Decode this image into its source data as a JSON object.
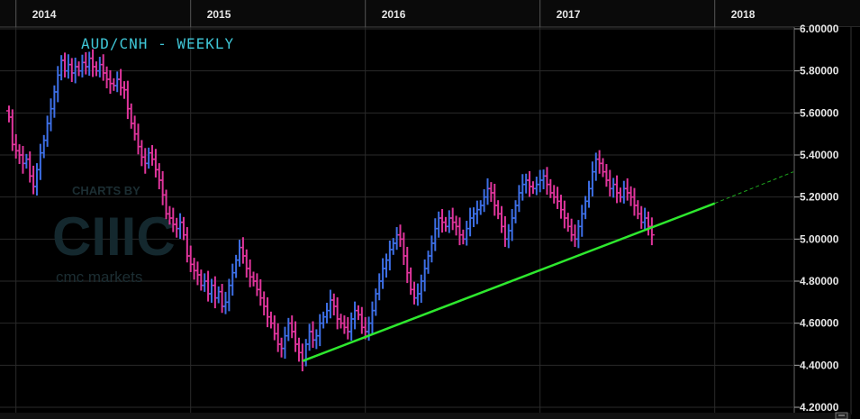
{
  "chart_data": {
    "type": "ohlc",
    "title": "AUD/CNH - WEEKLY",
    "x_axis": {
      "tick_labels": [
        "2014",
        "2015",
        "2016",
        "2017",
        "2018"
      ],
      "tick_values": [
        2014.0,
        2015.0,
        2016.0,
        2017.0,
        2018.0
      ],
      "range": [
        2013.95,
        2018.45
      ]
    },
    "y_axis": {
      "tick_labels": [
        "6.00000",
        "5.80000",
        "5.60000",
        "5.40000",
        "5.20000",
        "5.00000",
        "4.80000",
        "4.60000",
        "4.40000",
        "4.20000"
      ],
      "tick_values": [
        6.0,
        5.8,
        5.6,
        5.4,
        5.2,
        5.0,
        4.8,
        4.6,
        4.4,
        4.2
      ],
      "range": [
        4.2,
        6.0
      ],
      "position": "right"
    },
    "grid": true,
    "colors": {
      "up": "#3d6fe6",
      "down": "#e0359c",
      "trendline": "#2ee82e",
      "grid": "#2a2a2a",
      "title": "#3fc6d6"
    },
    "series": [
      {
        "values": [
          [
            2013.96,
            5.58
          ],
          [
            2013.98,
            5.45
          ],
          [
            2014.0,
            5.42
          ],
          [
            2014.02,
            5.4
          ],
          [
            2014.04,
            5.36
          ],
          [
            2014.06,
            5.38
          ],
          [
            2014.08,
            5.3
          ],
          [
            2014.1,
            5.25
          ],
          [
            2014.12,
            5.33
          ],
          [
            2014.14,
            5.41
          ],
          [
            2014.16,
            5.47
          ],
          [
            2014.18,
            5.55
          ],
          [
            2014.2,
            5.62
          ],
          [
            2014.22,
            5.7
          ],
          [
            2014.24,
            5.78
          ],
          [
            2014.26,
            5.85
          ],
          [
            2014.28,
            5.8
          ],
          [
            2014.3,
            5.83
          ],
          [
            2014.32,
            5.79
          ],
          [
            2014.34,
            5.82
          ],
          [
            2014.36,
            5.8
          ],
          [
            2014.38,
            5.84
          ],
          [
            2014.4,
            5.82
          ],
          [
            2014.42,
            5.86
          ],
          [
            2014.44,
            5.82
          ],
          [
            2014.46,
            5.8
          ],
          [
            2014.48,
            5.83
          ],
          [
            2014.5,
            5.79
          ],
          [
            2014.52,
            5.76
          ],
          [
            2014.54,
            5.74
          ],
          [
            2014.56,
            5.73
          ],
          [
            2014.58,
            5.76
          ],
          [
            2014.6,
            5.72
          ],
          [
            2014.62,
            5.71
          ],
          [
            2014.64,
            5.62
          ],
          [
            2014.66,
            5.55
          ],
          [
            2014.68,
            5.5
          ],
          [
            2014.7,
            5.44
          ],
          [
            2014.72,
            5.39
          ],
          [
            2014.74,
            5.36
          ],
          [
            2014.76,
            5.41
          ],
          [
            2014.78,
            5.38
          ],
          [
            2014.8,
            5.33
          ],
          [
            2014.82,
            5.28
          ],
          [
            2014.84,
            5.21
          ],
          [
            2014.86,
            5.12
          ],
          [
            2014.88,
            5.1
          ],
          [
            2014.9,
            5.07
          ],
          [
            2014.92,
            5.05
          ],
          [
            2014.94,
            5.08
          ],
          [
            2014.96,
            5.02
          ],
          [
            2014.98,
            4.92
          ],
          [
            2015.0,
            4.88
          ],
          [
            2015.02,
            4.85
          ],
          [
            2015.04,
            4.83
          ],
          [
            2015.06,
            4.78
          ],
          [
            2015.08,
            4.8
          ],
          [
            2015.1,
            4.74
          ],
          [
            2015.12,
            4.78
          ],
          [
            2015.14,
            4.72
          ],
          [
            2015.16,
            4.75
          ],
          [
            2015.18,
            4.68
          ],
          [
            2015.2,
            4.7
          ],
          [
            2015.22,
            4.78
          ],
          [
            2015.24,
            4.84
          ],
          [
            2015.26,
            4.9
          ],
          [
            2015.28,
            4.96
          ],
          [
            2015.3,
            4.92
          ],
          [
            2015.32,
            4.86
          ],
          [
            2015.34,
            4.82
          ],
          [
            2015.36,
            4.8
          ],
          [
            2015.38,
            4.76
          ],
          [
            2015.4,
            4.72
          ],
          [
            2015.42,
            4.68
          ],
          [
            2015.44,
            4.63
          ],
          [
            2015.46,
            4.6
          ],
          [
            2015.48,
            4.55
          ],
          [
            2015.5,
            4.5
          ],
          [
            2015.52,
            4.48
          ],
          [
            2015.54,
            4.54
          ],
          [
            2015.56,
            4.6
          ],
          [
            2015.58,
            4.56
          ],
          [
            2015.6,
            4.5
          ],
          [
            2015.62,
            4.46
          ],
          [
            2015.64,
            4.42
          ],
          [
            2015.66,
            4.5
          ],
          [
            2015.68,
            4.56
          ],
          [
            2015.7,
            4.52
          ],
          [
            2015.72,
            4.54
          ],
          [
            2015.74,
            4.6
          ],
          [
            2015.76,
            4.63
          ],
          [
            2015.78,
            4.66
          ],
          [
            2015.8,
            4.71
          ],
          [
            2015.82,
            4.68
          ],
          [
            2015.84,
            4.62
          ],
          [
            2015.86,
            4.6
          ],
          [
            2015.88,
            4.58
          ],
          [
            2015.9,
            4.56
          ],
          [
            2015.92,
            4.62
          ],
          [
            2015.94,
            4.66
          ],
          [
            2015.96,
            4.64
          ],
          [
            2015.98,
            4.58
          ],
          [
            2016.0,
            4.56
          ],
          [
            2016.02,
            4.6
          ],
          [
            2016.04,
            4.66
          ],
          [
            2016.06,
            4.74
          ],
          [
            2016.08,
            4.8
          ],
          [
            2016.1,
            4.86
          ],
          [
            2016.12,
            4.9
          ],
          [
            2016.14,
            4.95
          ],
          [
            2016.16,
            4.98
          ],
          [
            2016.18,
            5.02
          ],
          [
            2016.2,
            5.0
          ],
          [
            2016.22,
            4.92
          ],
          [
            2016.24,
            4.84
          ],
          [
            2016.26,
            4.76
          ],
          [
            2016.28,
            4.72
          ],
          [
            2016.3,
            4.74
          ],
          [
            2016.32,
            4.8
          ],
          [
            2016.34,
            4.86
          ],
          [
            2016.36,
            4.92
          ],
          [
            2016.38,
            4.98
          ],
          [
            2016.4,
            5.05
          ],
          [
            2016.42,
            5.1
          ],
          [
            2016.44,
            5.08
          ],
          [
            2016.46,
            5.06
          ],
          [
            2016.48,
            5.1
          ],
          [
            2016.5,
            5.08
          ],
          [
            2016.52,
            5.06
          ],
          [
            2016.54,
            5.02
          ],
          [
            2016.56,
            5.0
          ],
          [
            2016.58,
            5.05
          ],
          [
            2016.6,
            5.1
          ],
          [
            2016.62,
            5.12
          ],
          [
            2016.64,
            5.14
          ],
          [
            2016.66,
            5.16
          ],
          [
            2016.68,
            5.2
          ],
          [
            2016.7,
            5.24
          ],
          [
            2016.72,
            5.22
          ],
          [
            2016.74,
            5.16
          ],
          [
            2016.76,
            5.12
          ],
          [
            2016.78,
            5.06
          ],
          [
            2016.8,
            5.0
          ],
          [
            2016.82,
            5.04
          ],
          [
            2016.84,
            5.1
          ],
          [
            2016.86,
            5.16
          ],
          [
            2016.88,
            5.22
          ],
          [
            2016.9,
            5.26
          ],
          [
            2016.92,
            5.28
          ],
          [
            2016.94,
            5.25
          ],
          [
            2016.96,
            5.24
          ],
          [
            2016.98,
            5.26
          ],
          [
            2017.0,
            5.28
          ],
          [
            2017.02,
            5.3
          ],
          [
            2017.04,
            5.26
          ],
          [
            2017.06,
            5.22
          ],
          [
            2017.08,
            5.2
          ],
          [
            2017.1,
            5.18
          ],
          [
            2017.12,
            5.14
          ],
          [
            2017.14,
            5.1
          ],
          [
            2017.16,
            5.06
          ],
          [
            2017.18,
            5.02
          ],
          [
            2017.2,
            5.0
          ],
          [
            2017.22,
            5.06
          ],
          [
            2017.24,
            5.12
          ],
          [
            2017.26,
            5.18
          ],
          [
            2017.28,
            5.24
          ],
          [
            2017.3,
            5.32
          ],
          [
            2017.32,
            5.38
          ],
          [
            2017.34,
            5.36
          ],
          [
            2017.36,
            5.32
          ],
          [
            2017.38,
            5.28
          ],
          [
            2017.4,
            5.24
          ],
          [
            2017.42,
            5.26
          ],
          [
            2017.44,
            5.22
          ],
          [
            2017.46,
            5.2
          ],
          [
            2017.48,
            5.24
          ],
          [
            2017.5,
            5.22
          ],
          [
            2017.52,
            5.2
          ],
          [
            2017.54,
            5.16
          ],
          [
            2017.56,
            5.12
          ],
          [
            2017.58,
            5.08
          ],
          [
            2017.6,
            5.1
          ],
          [
            2017.62,
            5.06
          ],
          [
            2017.64,
            5.02
          ]
        ]
      }
    ],
    "trendline": {
      "x": [
        2015.64,
        2018.0
      ],
      "y": [
        4.42,
        5.17
      ],
      "extension": {
        "x": [
          2018.0,
          2018.45
        ],
        "y": [
          5.17,
          5.32
        ],
        "style": "dashed"
      }
    }
  }
}
